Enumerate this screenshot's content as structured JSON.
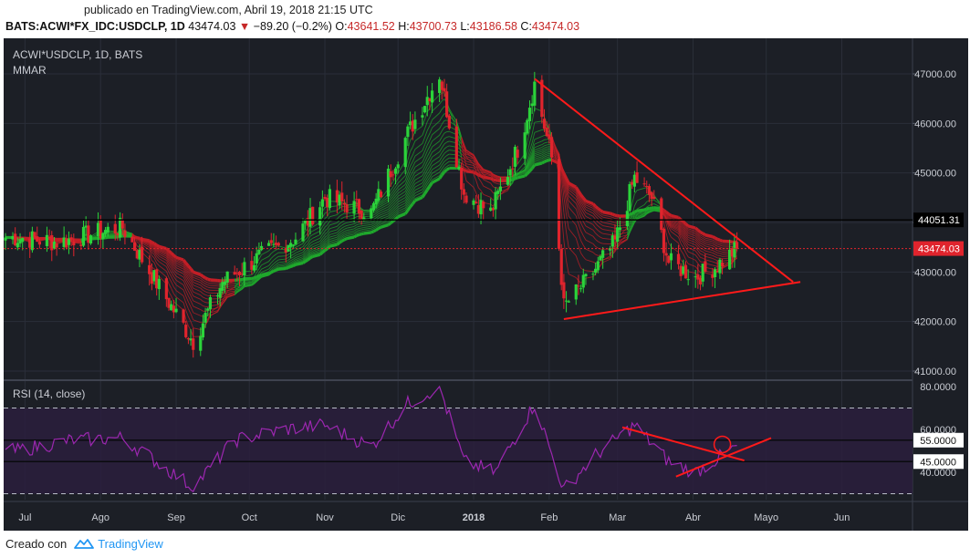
{
  "header": {
    "published": "publicado en TradingView.com, Abril 19, 2018 21:15 UTC",
    "symbol": "BATS:ACWI*FX_IDC:USDCLP, 1D",
    "last": "43474.03",
    "change": "−89.20 (−0.2%)",
    "o_label": "O:",
    "o_value": "43641.52",
    "h_label": "H:",
    "h_value": "43700.73",
    "l_label": "L:",
    "l_value": "43186.58",
    "c_label": "C:",
    "c_value": "43474.03"
  },
  "legend": {
    "title": "ACWI*USDCLP, 1D, BATS",
    "indicator": "MMAR",
    "rsi_label": "RSI (14, close)"
  },
  "footer": {
    "created_with": "Creado con",
    "brand": "TradingView"
  },
  "colors": {
    "background": "#1c1f26",
    "bull": "#2bd33a",
    "bear": "#e0242d",
    "rsi_line": "#9c27b0",
    "trendline": "#ff1a1a",
    "grid": "#2a2e39"
  },
  "chart_data": [
    {
      "type": "candlestick",
      "title": "ACWI*USDCLP, 1D, BATS",
      "ylim": [
        41000,
        47000
      ],
      "y_ticks": [
        "47000.00",
        "46000.00",
        "45000.00",
        "44000.00",
        "43000.00",
        "42000.00",
        "41000.00"
      ],
      "x_ticks": [
        "Jul",
        "Ago",
        "Sep",
        "Oct",
        "Nov",
        "Dic",
        "2018",
        "Feb",
        "Mar",
        "Abr",
        "Mayo",
        "Jun"
      ],
      "price_markers": [
        {
          "label": "44051.31",
          "value": 44051.31
        },
        {
          "label": "43474.03",
          "value": 43474.03
        }
      ],
      "series_anchor_points": [
        {
          "x": "Jun 27, 2017",
          "y": 43700
        },
        {
          "x": "Jul 15, 2017",
          "y": 43600
        },
        {
          "x": "Jul 31, 2017",
          "y": 43800
        },
        {
          "x": "Aug 10, 2017",
          "y": 43900
        },
        {
          "x": "Aug 25, 2017",
          "y": 42700
        },
        {
          "x": "Sep 8, 2017",
          "y": 41600
        },
        {
          "x": "Sep 20, 2017",
          "y": 42800
        },
        {
          "x": "Oct 5, 2017",
          "y": 43300
        },
        {
          "x": "Oct 20, 2017",
          "y": 43700
        },
        {
          "x": "Nov 1, 2017",
          "y": 44500
        },
        {
          "x": "Nov 20, 2017",
          "y": 44200
        },
        {
          "x": "Dec 5, 2017",
          "y": 45800
        },
        {
          "x": "Dec 18, 2017",
          "y": 47000
        },
        {
          "x": "Dec 28, 2017",
          "y": 44600
        },
        {
          "x": "Jan 8, 2018",
          "y": 44200
        },
        {
          "x": "Jan 20, 2018",
          "y": 45600
        },
        {
          "x": "Jan 26, 2018",
          "y": 46800
        },
        {
          "x": "Feb 2, 2018",
          "y": 45300
        },
        {
          "x": "Feb 7, 2018",
          "y": 42300
        },
        {
          "x": "Feb 16, 2018",
          "y": 42800
        },
        {
          "x": "Feb 28, 2018",
          "y": 43600
        },
        {
          "x": "Mar 8, 2018",
          "y": 44900
        },
        {
          "x": "Mar 15, 2018",
          "y": 44500
        },
        {
          "x": "Mar 22, 2018",
          "y": 43200
        },
        {
          "x": "Apr 2, 2018",
          "y": 42900
        },
        {
          "x": "Apr 10, 2018",
          "y": 43100
        },
        {
          "x": "Apr 19, 2018",
          "y": 43474
        }
      ],
      "trendlines": [
        {
          "from": {
            "x": "Jan 26, 2018",
            "y": 46900
          },
          "to": {
            "x": "May 12, 2018",
            "y": 42800
          }
        },
        {
          "from": {
            "x": "Feb 7, 2018",
            "y": 42050
          },
          "to": {
            "x": "May 15, 2018",
            "y": 42800
          }
        }
      ]
    },
    {
      "type": "line",
      "title": "RSI (14, close)",
      "ylim": [
        32,
        82
      ],
      "y_ticks": [
        "80.0000",
        "60.0000",
        "55.0000",
        "45.0000",
        "40.0000"
      ],
      "levels": [
        70,
        55,
        45,
        30
      ],
      "series_anchor_points": [
        {
          "x": "Jun 27, 2017",
          "y": 50
        },
        {
          "x": "Jul 20, 2017",
          "y": 55
        },
        {
          "x": "Aug 10, 2017",
          "y": 56
        },
        {
          "x": "Sep 8, 2017",
          "y": 33
        },
        {
          "x": "Sep 25, 2017",
          "y": 55
        },
        {
          "x": "Oct 15, 2017",
          "y": 60
        },
        {
          "x": "Nov 1, 2017",
          "y": 62
        },
        {
          "x": "Nov 20, 2017",
          "y": 52
        },
        {
          "x": "Dec 5, 2017",
          "y": 72
        },
        {
          "x": "Dec 18, 2017",
          "y": 80
        },
        {
          "x": "Dec 28, 2017",
          "y": 45
        },
        {
          "x": "Jan 10, 2018",
          "y": 40
        },
        {
          "x": "Jan 26, 2018",
          "y": 72
        },
        {
          "x": "Feb 7, 2018",
          "y": 32
        },
        {
          "x": "Feb 20, 2018",
          "y": 48
        },
        {
          "x": "Mar 8, 2018",
          "y": 62
        },
        {
          "x": "Mar 22, 2018",
          "y": 45
        },
        {
          "x": "Apr 2, 2018",
          "y": 40
        },
        {
          "x": "Apr 19, 2018",
          "y": 52
        }
      ],
      "trendlines": [
        {
          "from": {
            "x": "Mar 3, 2018",
            "y": 61
          },
          "to": {
            "x": "Apr 22, 2018",
            "y": 45.5
          }
        },
        {
          "from": {
            "x": "Mar 25, 2018",
            "y": 38
          },
          "to": {
            "x": "May 3, 2018",
            "y": 56
          }
        }
      ]
    }
  ]
}
